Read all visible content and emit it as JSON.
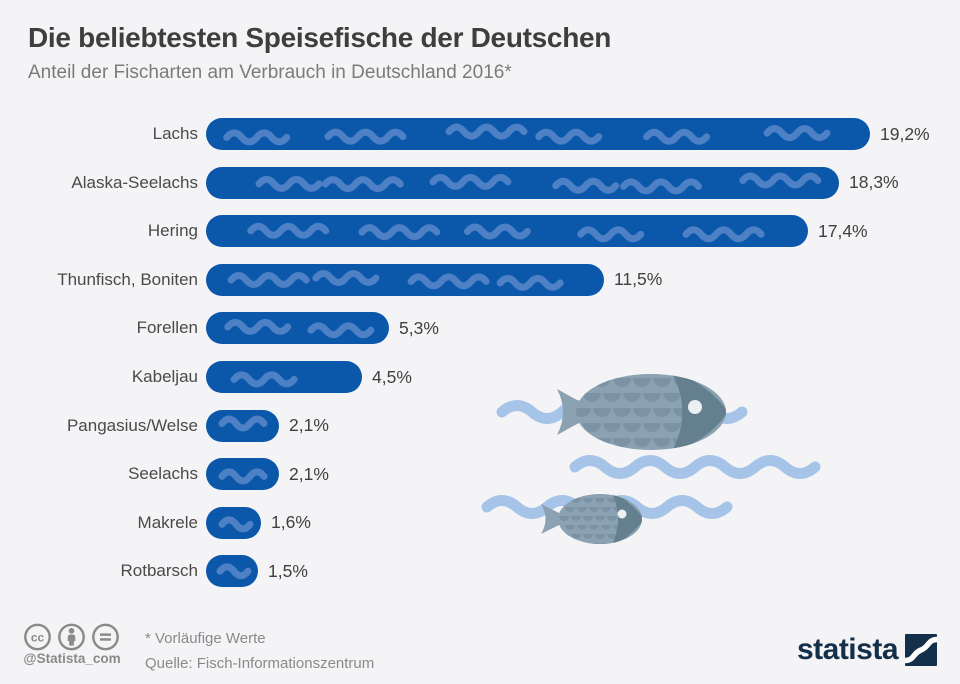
{
  "header": {
    "title": "Die beliebtesten Speisefische der Deutschen",
    "subtitle": "Anteil der Fischarten am Verbrauch in Deutschland 2016*"
  },
  "chart_data": {
    "type": "bar",
    "orientation": "horizontal",
    "title": "Die beliebtesten Speisefische der Deutschen",
    "subtitle": "Anteil der Fischarten am Verbrauch in Deutschland 2016*",
    "categories": [
      "Lachs",
      "Alaska-Seelachs",
      "Hering",
      "Thunfisch, Boniten",
      "Forellen",
      "Kabeljau",
      "Pangasius/Welse",
      "Seelachs",
      "Makrele",
      "Rotbarsch"
    ],
    "values": [
      19.2,
      18.3,
      17.4,
      11.5,
      5.3,
      4.5,
      2.1,
      2.1,
      1.6,
      1.5
    ],
    "value_labels": [
      "19,2%",
      "18,3%",
      "17,4%",
      "11,5%",
      "5,3%",
      "4,5%",
      "2,1%",
      "2,1%",
      "1,6%",
      "1,5%"
    ],
    "unit": "%",
    "xlim": [
      0,
      20
    ],
    "grid": false,
    "legend": "none",
    "bar_color": "#0b58ab",
    "bar_wave_color": "#4d80c4"
  },
  "illustration": {
    "wave_color": "#a6c4e7",
    "fish_body_color": "#8ba2b2",
    "fish_scale_color": "#7b93a4",
    "fish_head_color": "#64808f",
    "fish_eye_color": "#ecf0f3"
  },
  "footer": {
    "note": "* Vorläufige Werte",
    "source": "Quelle: Fisch-Informationszentrum",
    "handle": "@Statista_com",
    "brand": "statista",
    "license_icons": [
      "cc-icon",
      "attribution-icon",
      "no-derivatives-icon"
    ],
    "icon_color": "#8a8a8a",
    "brand_color": "#142f49"
  },
  "colors": {
    "background": "#f4f4f6",
    "title": "#3e3e3e",
    "subtitle": "#7b7b7b",
    "category_label": "#4a4a4a",
    "value_label": "#404040"
  }
}
